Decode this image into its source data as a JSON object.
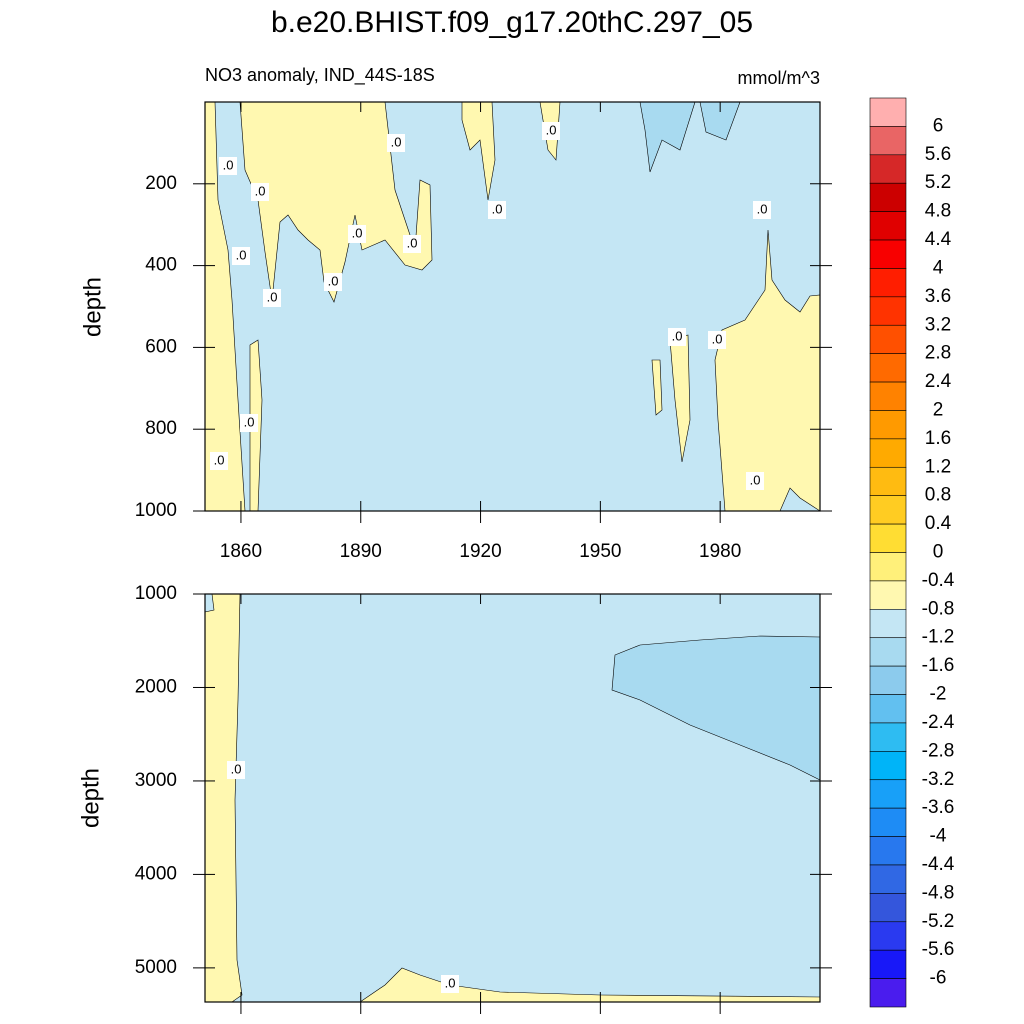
{
  "chart_data": [
    {
      "type": "contour",
      "title": "b.e20.BHIST.f09_g17.20thC.297_05",
      "subtitle": "NO3 anomaly, IND_44S-18S",
      "units": "mmol/m^3",
      "y_label": "depth",
      "xlim": [
        1851,
        2005
      ],
      "xticks": [
        1860,
        1890,
        1920,
        1950,
        1980
      ],
      "ylim": [
        0,
        1000
      ],
      "yticks": [
        200,
        400,
        600,
        800,
        1000
      ],
      "y_reversed": true,
      "contour_labels": [
        ".0",
        ".0",
        ".0",
        ".0",
        ".0",
        ".0",
        ".0",
        ".0",
        ".0",
        ".0",
        ".0",
        ".0",
        ".0",
        ".0",
        ".0",
        ".0"
      ]
    },
    {
      "type": "contour",
      "y_label": "depth",
      "ylim": [
        1000,
        5365
      ],
      "yticks": [
        1000,
        2000,
        3000,
        4000,
        5000
      ],
      "y_reversed": true,
      "contour_labels": [
        ".0",
        ".0"
      ]
    }
  ],
  "colorbar": {
    "levels": [
      6,
      5.6,
      5.2,
      4.8,
      4.4,
      4,
      3.6,
      3.2,
      2.8,
      2.4,
      2,
      1.6,
      1.2,
      0.8,
      0.4,
      0,
      -0.4,
      -0.8,
      -1.2,
      -1.6,
      -2,
      -2.4,
      -2.8,
      -3.2,
      -3.6,
      -4,
      -4.4,
      -4.8,
      -5.2,
      -5.6,
      -6
    ],
    "colors": [
      "#ffafaf",
      "#e96565",
      "#d62828",
      "#cc0000",
      "#e00000",
      "#f80000",
      "#ff1e00",
      "#ff3300",
      "#ff5000",
      "#ff6a00",
      "#ff8200",
      "#ff9a00",
      "#ffaa00",
      "#ffbb11",
      "#ffcc22",
      "#ffdd33",
      "#fff07a",
      "#fff8b0",
      "#c4e6f4",
      "#a8daf0",
      "#8ccbed",
      "#62c0f0",
      "#2ebcf2",
      "#00b4f8",
      "#18a0f8",
      "#1e8cf5",
      "#2878ee",
      "#3068e4",
      "#3456dc",
      "#2a3af0",
      "#1818f8",
      "#4a1cee"
    ]
  }
}
